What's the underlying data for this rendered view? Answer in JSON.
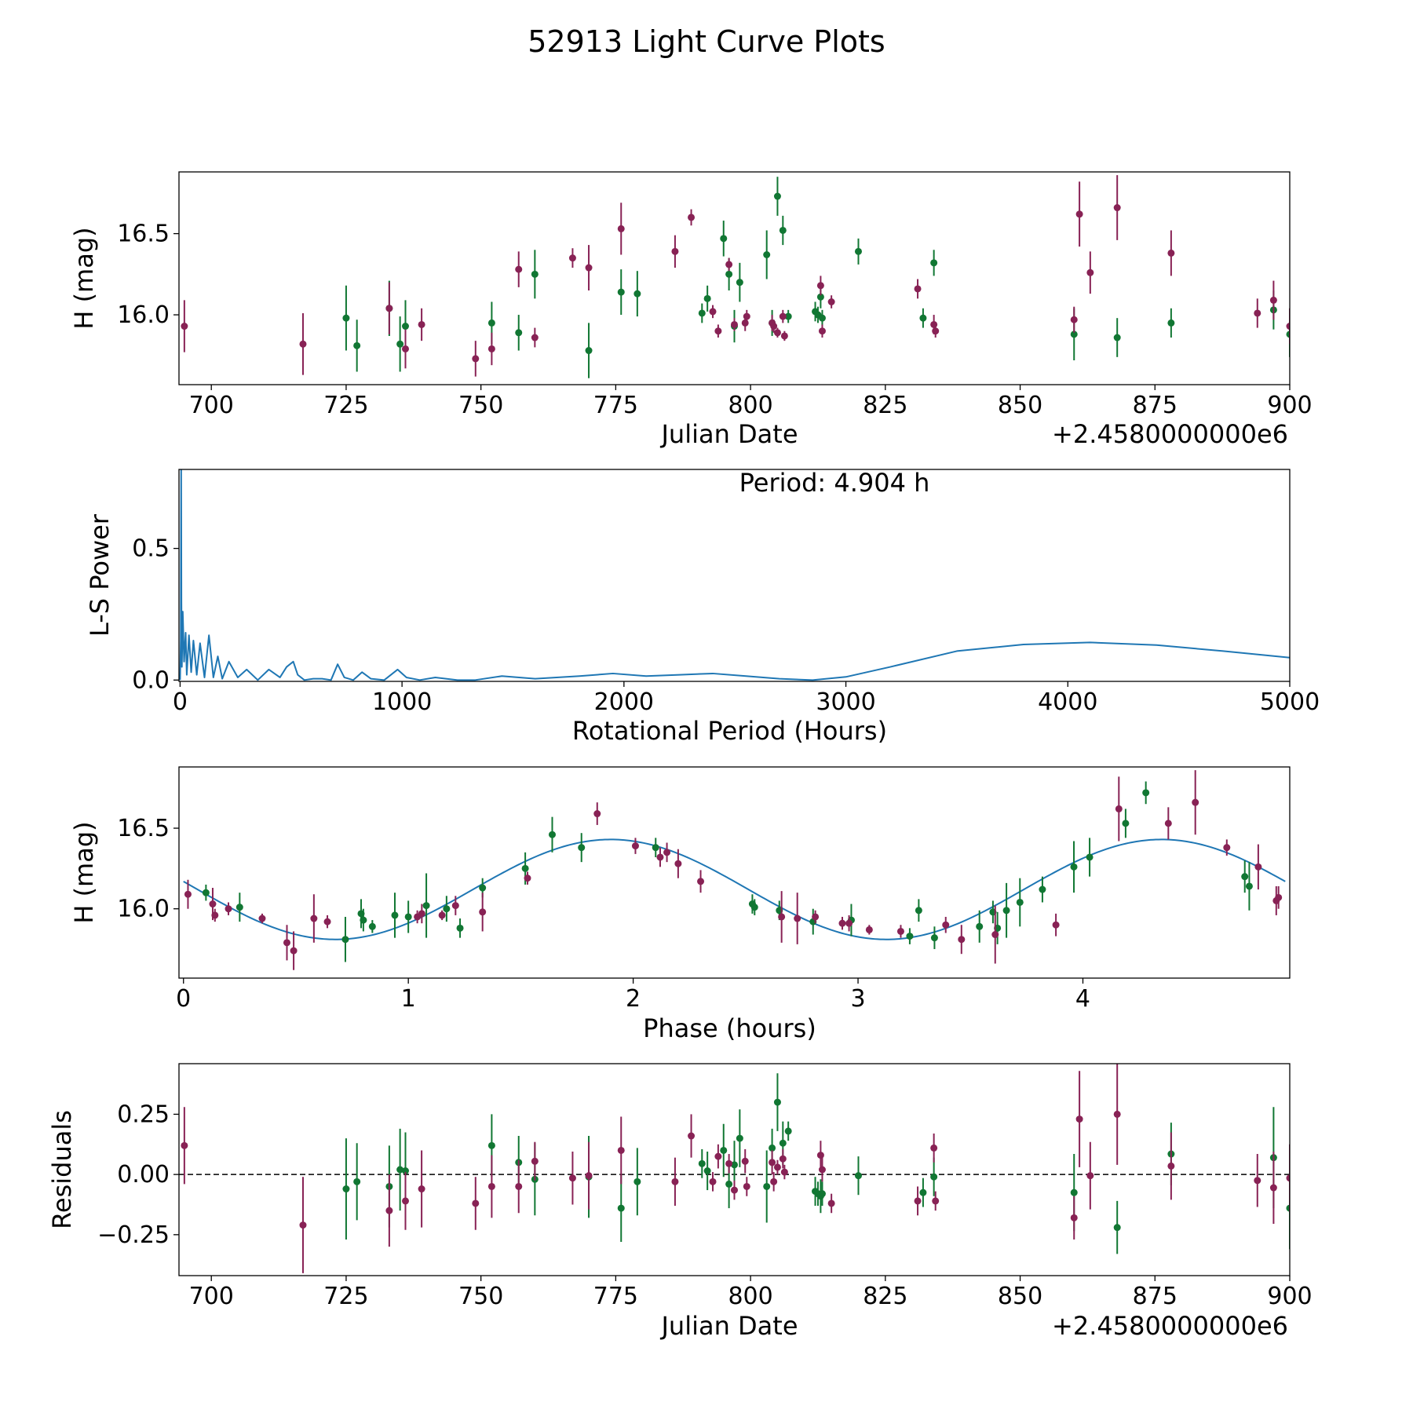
{
  "figure_title": "52913 Light Curve Plots",
  "colors": {
    "green": "#117733",
    "maroon": "#882255",
    "curve": "#1f77b4",
    "zero_line": "#000000"
  },
  "chart_data": [
    {
      "type": "scatter",
      "id": "lightcurve",
      "title": "",
      "xlabel": "Julian Date",
      "ylabel": "H (mag)",
      "xlim": [
        694,
        900
      ],
      "ylim": [
        15.57,
        16.88
      ],
      "yaxis_inverted": false,
      "x_offset_label": "+2.4580000000e6",
      "xticks": [
        700,
        725,
        750,
        775,
        800,
        825,
        850,
        875,
        900
      ],
      "xtick_labels": [
        "700",
        "725",
        "750",
        "775",
        "800",
        "825",
        "850",
        "875",
        "900"
      ],
      "yticks": [
        16.0,
        16.5
      ],
      "ytick_labels": [
        "16.0",
        "16.5"
      ],
      "series": [
        {
          "name": "green",
          "color": "#117733",
          "x": [
            725,
            727,
            733,
            735,
            736,
            752,
            757,
            760,
            770,
            776,
            779,
            791,
            792,
            795,
            796,
            797,
            798,
            803,
            804,
            805,
            806,
            807,
            812,
            812.5,
            813,
            813.3,
            820,
            832,
            834,
            860,
            868,
            878,
            897,
            900
          ],
          "y": [
            15.98,
            15.81,
            16.04,
            15.82,
            15.93,
            15.95,
            15.89,
            16.25,
            15.78,
            16.14,
            16.13,
            16.01,
            16.1,
            16.47,
            16.25,
            15.93,
            16.2,
            16.37,
            15.95,
            16.73,
            16.52,
            15.99,
            16.02,
            16.0,
            16.11,
            15.98,
            16.39,
            15.98,
            16.32,
            15.88,
            15.86,
            15.95,
            16.03,
            15.88
          ],
          "err": [
            0.2,
            0.16,
            0.17,
            0.17,
            0.16,
            0.13,
            0.11,
            0.15,
            0.17,
            0.14,
            0.14,
            0.06,
            0.08,
            0.11,
            0.1,
            0.1,
            0.12,
            0.15,
            0.08,
            0.12,
            0.09,
            0.04,
            0.06,
            0.05,
            0.07,
            0.05,
            0.08,
            0.06,
            0.08,
            0.16,
            0.12,
            0.09,
            0.12,
            0.14
          ]
        },
        {
          "name": "maroon",
          "color": "#882255",
          "x": [
            695,
            717,
            733,
            736,
            739,
            749,
            752,
            757,
            760,
            767,
            770,
            776,
            786,
            789,
            793,
            794,
            796,
            797,
            799,
            799.3,
            804,
            804.3,
            805,
            806,
            806.3,
            813,
            813.3,
            815,
            831,
            834,
            834.3,
            860,
            861,
            863,
            868,
            878,
            894,
            897,
            900
          ],
          "y": [
            15.93,
            15.82,
            16.04,
            15.79,
            15.94,
            15.73,
            15.79,
            16.28,
            15.86,
            16.35,
            16.29,
            16.53,
            16.39,
            16.6,
            16.02,
            15.9,
            16.31,
            15.94,
            15.95,
            15.99,
            15.95,
            15.93,
            15.89,
            15.99,
            15.87,
            16.18,
            15.9,
            16.08,
            16.16,
            15.94,
            15.9,
            15.97,
            16.62,
            16.26,
            16.66,
            16.38,
            16.01,
            16.09,
            15.93
          ],
          "err": [
            0.16,
            0.19,
            0.16,
            0.12,
            0.1,
            0.11,
            0.1,
            0.11,
            0.06,
            0.06,
            0.14,
            0.16,
            0.1,
            0.05,
            0.04,
            0.04,
            0.04,
            0.04,
            0.05,
            0.04,
            0.05,
            0.04,
            0.03,
            0.04,
            0.03,
            0.06,
            0.04,
            0.04,
            0.06,
            0.06,
            0.04,
            0.08,
            0.2,
            0.13,
            0.2,
            0.14,
            0.09,
            0.12,
            0.11
          ]
        }
      ]
    },
    {
      "type": "line",
      "id": "periodogram",
      "title": "",
      "xlabel": "Rotational Period (Hours)",
      "ylabel": "L-S Power",
      "xlim": [
        -5,
        5000
      ],
      "ylim": [
        -0.005,
        0.8
      ],
      "xticks": [
        0,
        1000,
        2000,
        3000,
        4000,
        5000
      ],
      "xtick_labels": [
        "0",
        "1000",
        "2000",
        "3000",
        "4000",
        "5000"
      ],
      "yticks": [
        0.0,
        0.5
      ],
      "ytick_labels": [
        "0.0",
        "0.5"
      ],
      "annotation": "Period: 4.904 h",
      "series": [
        {
          "name": "L-S power",
          "color": "#1f77b4",
          "x": [
            0,
            3,
            4.9,
            6,
            8,
            12,
            18,
            25,
            30,
            40,
            50,
            60,
            75,
            90,
            110,
            130,
            150,
            170,
            190,
            220,
            260,
            300,
            350,
            400,
            450,
            480,
            510,
            530,
            560,
            600,
            640,
            680,
            710,
            740,
            780,
            820,
            860,
            920,
            980,
            1020,
            1080,
            1150,
            1250,
            1330,
            1450,
            1600,
            1800,
            1950,
            2100,
            2250,
            2400,
            2550,
            2700,
            2850,
            3000,
            3200,
            3500,
            3800,
            4100,
            4400,
            4700,
            5000
          ],
          "y": [
            0.0,
            0.15,
            0.8,
            0.3,
            0.05,
            0.26,
            0.07,
            0.18,
            0.02,
            0.17,
            0.03,
            0.15,
            0.02,
            0.14,
            0.01,
            0.17,
            0.01,
            0.09,
            0.005,
            0.07,
            0.01,
            0.04,
            0.0,
            0.04,
            0.01,
            0.05,
            0.07,
            0.02,
            0.0,
            0.005,
            0.005,
            0.0,
            0.06,
            0.01,
            0.0,
            0.03,
            0.005,
            0.0,
            0.04,
            0.01,
            0.0,
            0.01,
            0.0,
            0.0,
            0.015,
            0.005,
            0.015,
            0.025,
            0.015,
            0.02,
            0.025,
            0.015,
            0.005,
            0.0,
            0.012,
            0.05,
            0.11,
            0.135,
            0.143,
            0.133,
            0.11,
            0.085
          ]
        }
      ]
    },
    {
      "type": "scatter",
      "id": "phased",
      "title": "",
      "xlabel": "Phase (hours)",
      "ylabel": "H (mag)",
      "xlim": [
        -0.02,
        4.92
      ],
      "ylim": [
        15.57,
        16.88
      ],
      "xticks": [
        0,
        1,
        2,
        3,
        4
      ],
      "xtick_labels": [
        "0",
        "1",
        "2",
        "3",
        "4"
      ],
      "yticks": [
        16.0,
        16.5
      ],
      "ytick_labels": [
        "16.0",
        "16.5"
      ],
      "model": {
        "name": "sinusoid fit",
        "color": "#1f77b4",
        "mean": 16.12,
        "amplitude": 0.31,
        "period": 2.45,
        "peak_phase": 1.9,
        "x_range": [
          0,
          4.9
        ]
      },
      "series": [
        {
          "name": "green",
          "color": "#117733",
          "x": [
            0.1,
            0.25,
            0.72,
            0.79,
            0.8,
            0.84,
            0.94,
            1.0,
            1.08,
            1.17,
            1.23,
            1.33,
            1.52,
            1.64,
            1.77,
            2.1,
            2.53,
            2.54,
            2.65,
            2.8,
            2.97,
            3.23,
            3.27,
            3.34,
            3.54,
            3.6,
            3.62,
            3.66,
            3.72,
            3.82,
            3.96,
            4.03,
            4.19,
            4.28,
            4.72,
            4.74
          ],
          "y": [
            16.1,
            16.01,
            15.81,
            15.97,
            15.93,
            15.89,
            15.96,
            15.95,
            16.02,
            16.0,
            15.88,
            16.13,
            16.25,
            16.46,
            16.38,
            16.38,
            16.03,
            16.01,
            15.99,
            15.92,
            15.93,
            15.83,
            15.99,
            15.82,
            15.89,
            15.98,
            15.88,
            15.99,
            16.04,
            16.12,
            16.26,
            16.32,
            16.53,
            16.72,
            16.2,
            16.14
          ],
          "err": [
            0.05,
            0.09,
            0.14,
            0.09,
            0.07,
            0.04,
            0.14,
            0.1,
            0.2,
            0.08,
            0.06,
            0.06,
            0.1,
            0.11,
            0.09,
            0.06,
            0.06,
            0.05,
            0.06,
            0.08,
            0.1,
            0.05,
            0.07,
            0.07,
            0.1,
            0.07,
            0.1,
            0.17,
            0.15,
            0.08,
            0.16,
            0.12,
            0.09,
            0.07,
            0.1,
            0.15
          ]
        },
        {
          "name": "maroon",
          "color": "#882255",
          "x": [
            0.02,
            0.13,
            0.14,
            0.2,
            0.35,
            0.46,
            0.49,
            0.58,
            0.64,
            1.04,
            1.06,
            1.15,
            1.21,
            1.33,
            1.53,
            1.84,
            2.01,
            2.12,
            2.15,
            2.2,
            2.3,
            2.66,
            2.73,
            2.81,
            2.93,
            2.96,
            3.05,
            3.19,
            3.39,
            3.46,
            3.61,
            3.88,
            4.16,
            4.38,
            4.5,
            4.64,
            4.78,
            4.86,
            4.87
          ],
          "y": [
            16.09,
            16.03,
            15.96,
            16.0,
            15.94,
            15.79,
            15.74,
            15.94,
            15.92,
            15.95,
            15.97,
            15.96,
            16.02,
            15.98,
            16.19,
            16.59,
            16.39,
            16.32,
            16.35,
            16.28,
            16.17,
            15.95,
            15.94,
            15.95,
            15.91,
            15.91,
            15.87,
            15.86,
            15.9,
            15.81,
            15.84,
            15.9,
            16.62,
            16.53,
            16.66,
            16.38,
            16.26,
            16.05,
            16.07
          ],
          "err": [
            0.09,
            0.1,
            0.04,
            0.04,
            0.03,
            0.11,
            0.12,
            0.15,
            0.04,
            0.04,
            0.06,
            0.03,
            0.06,
            0.12,
            0.04,
            0.07,
            0.05,
            0.06,
            0.06,
            0.09,
            0.07,
            0.16,
            0.16,
            0.04,
            0.04,
            0.05,
            0.03,
            0.04,
            0.05,
            0.09,
            0.18,
            0.07,
            0.2,
            0.1,
            0.2,
            0.05,
            0.14,
            0.09,
            0.07
          ]
        }
      ]
    },
    {
      "type": "scatter",
      "id": "residuals",
      "title": "",
      "xlabel": "Julian Date",
      "ylabel": "Residuals",
      "xlim": [
        694,
        900
      ],
      "ylim": [
        -0.42,
        0.46
      ],
      "x_offset_label": "+2.4580000000e6",
      "xticks": [
        700,
        725,
        750,
        775,
        800,
        825,
        850,
        875,
        900
      ],
      "xtick_labels": [
        "700",
        "725",
        "750",
        "775",
        "800",
        "825",
        "850",
        "875",
        "900"
      ],
      "yticks": [
        -0.25,
        0.0,
        0.25
      ],
      "ytick_labels": [
        "−0.25",
        "0.00",
        "0.25"
      ],
      "reference_line": {
        "y": 0.0,
        "style": "dashed",
        "color": "#000000"
      },
      "series": [
        {
          "name": "green",
          "color": "#117733",
          "x": [
            725,
            727,
            733,
            735,
            736,
            752,
            757,
            760,
            770,
            776,
            779,
            791,
            792,
            795,
            796,
            797,
            798,
            803,
            804,
            805,
            806,
            807,
            812,
            812.5,
            813,
            813.3,
            820,
            832,
            834,
            860,
            868,
            878,
            897,
            900
          ],
          "y": [
            -0.06,
            -0.03,
            -0.05,
            0.02,
            0.015,
            0.12,
            0.05,
            -0.02,
            -0.01,
            -0.14,
            -0.03,
            0.045,
            0.015,
            0.1,
            -0.04,
            0.04,
            0.15,
            -0.05,
            0.11,
            0.3,
            0.13,
            0.18,
            -0.07,
            -0.08,
            -0.09,
            -0.08,
            -0.005,
            -0.075,
            -0.01,
            -0.075,
            -0.22,
            0.085,
            0.07,
            -0.14
          ],
          "err": [
            0.21,
            0.16,
            0.17,
            0.17,
            0.16,
            0.13,
            0.11,
            0.15,
            0.17,
            0.14,
            0.14,
            0.06,
            0.08,
            0.11,
            0.1,
            0.1,
            0.12,
            0.15,
            0.08,
            0.12,
            0.09,
            0.04,
            0.06,
            0.05,
            0.07,
            0.05,
            0.08,
            0.06,
            0.08,
            0.16,
            0.11,
            0.13,
            0.21,
            0.17
          ]
        },
        {
          "name": "maroon",
          "color": "#882255",
          "x": [
            695,
            717,
            733,
            736,
            739,
            749,
            752,
            757,
            760,
            767,
            770,
            776,
            786,
            789,
            793,
            794,
            796,
            797,
            799,
            799.3,
            804,
            804.3,
            805,
            806,
            806.3,
            813,
            813.3,
            815,
            831,
            834,
            834.3,
            860,
            861,
            863,
            868,
            878,
            894,
            897,
            900
          ],
          "y": [
            0.12,
            -0.21,
            -0.15,
            -0.11,
            -0.06,
            -0.12,
            -0.05,
            -0.05,
            0.055,
            -0.015,
            -0.005,
            0.1,
            -0.03,
            0.16,
            -0.03,
            0.075,
            0.045,
            -0.065,
            0.055,
            -0.05,
            0.05,
            -0.03,
            0.03,
            0.065,
            0.01,
            0.08,
            0.02,
            -0.12,
            -0.11,
            0.11,
            -0.11,
            -0.18,
            0.23,
            -0.005,
            0.25,
            0.035,
            -0.025,
            -0.055,
            -0.015
          ],
          "err": [
            0.16,
            0.2,
            0.15,
            0.12,
            0.16,
            0.11,
            0.13,
            0.11,
            0.08,
            0.11,
            0.14,
            0.14,
            0.1,
            0.09,
            0.04,
            0.05,
            0.04,
            0.04,
            0.05,
            0.04,
            0.05,
            0.04,
            0.03,
            0.04,
            0.03,
            0.06,
            0.05,
            0.04,
            0.06,
            0.06,
            0.04,
            0.09,
            0.2,
            0.14,
            0.21,
            0.14,
            0.11,
            0.15,
            0.14
          ]
        }
      ]
    }
  ]
}
